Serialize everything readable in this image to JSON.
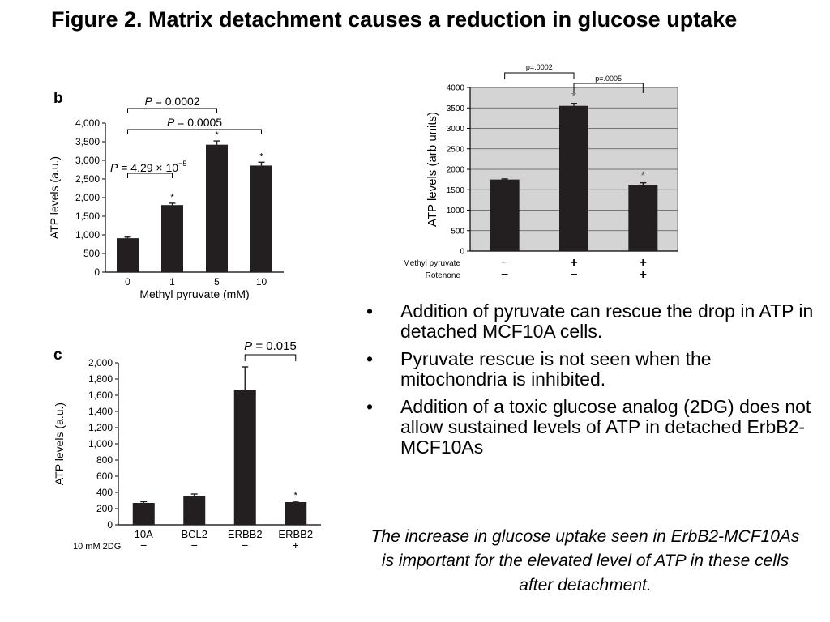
{
  "slide": {
    "title": "Figure 2. Matrix detachment causes a reduction in glucose uptake",
    "bullets": [
      "Addition of pyruvate can rescue the drop in ATP in detached MCF10A cells.",
      "Pyruvate rescue is not seen when the mitochondria is inhibited.",
      "Addition of a toxic glucose analog (2DG) does not allow sustained levels of ATP in detached ErbB2-MCF10As"
    ],
    "caption": "The increase in glucose uptake seen in ErbB2-MCF10As is important for the elevated level of ATP in these cells after detachment."
  },
  "chart_data": [
    {
      "id": "b",
      "type": "bar",
      "panel_label": "b",
      "categories": [
        "0",
        "1",
        "5",
        "10"
      ],
      "values": [
        910,
        1800,
        3420,
        2860
      ],
      "errors": [
        30,
        50,
        100,
        90
      ],
      "significance": [
        "",
        "*",
        "*",
        "*"
      ],
      "xlabel": "Methyl pyruvate (mM)",
      "ylabel": "ATP levels (a.u.)",
      "ylim": [
        0,
        4000
      ],
      "yticks": [
        0,
        500,
        1000,
        1500,
        2000,
        2500,
        3000,
        3500,
        4000
      ],
      "ytick_labels": [
        "0",
        "500",
        "1,000",
        "1,500",
        "2,000",
        "2,500",
        "3,000",
        "3,500",
        "4,000"
      ],
      "grid": false,
      "annotations": [
        {
          "text": "P = 0.0002",
          "from": 0,
          "to": 2
        },
        {
          "text": "P = 0.0005",
          "from": 0,
          "to": 3
        },
        {
          "text": "P = 4.29 × 10",
          "superscript": "−5",
          "from": 0,
          "to": 1
        }
      ]
    },
    {
      "id": "c",
      "type": "bar",
      "panel_label": "c",
      "categories": [
        "10A",
        "BCL2",
        "ERBB2",
        "ERBB2"
      ],
      "values": [
        270,
        360,
        1670,
        280
      ],
      "errors": [
        15,
        20,
        280,
        10
      ],
      "significance": [
        "",
        "",
        "",
        "*"
      ],
      "condition_label": "10 mM 2DG",
      "condition_values": [
        "−",
        "−",
        "−",
        "+"
      ],
      "ylabel": "ATP levels (a.u.)",
      "ylim": [
        0,
        2000
      ],
      "yticks": [
        0,
        200,
        400,
        600,
        800,
        1000,
        1200,
        1400,
        1600,
        1800,
        2000
      ],
      "ytick_labels": [
        "0",
        "200",
        "400",
        "600",
        "800",
        "1,000",
        "1,200",
        "1,400",
        "1,600",
        "1,800",
        "2,000"
      ],
      "grid": false,
      "annotations": [
        {
          "text": "P = 0.015",
          "from": 2,
          "to": 3
        }
      ]
    },
    {
      "id": "d",
      "type": "bar",
      "categories": [
        "",
        "",
        ""
      ],
      "values": [
        1750,
        3550,
        1620
      ],
      "errors": [
        15,
        60,
        50
      ],
      "significance": [
        "",
        "*",
        "*"
      ],
      "ylabel": "ATP levels (arb units)",
      "ylim": [
        0,
        4000
      ],
      "yticks": [
        0,
        500,
        1000,
        1500,
        2000,
        2500,
        3000,
        3500,
        4000
      ],
      "ytick_labels": [
        "0",
        "500",
        "1000",
        "1500",
        "2000",
        "2500",
        "3000",
        "3500",
        "4000"
      ],
      "grid": true,
      "plot_background": "#d4d4d4",
      "conditions": [
        {
          "label": "Methyl pyruvate",
          "values": [
            "−",
            "+",
            "+"
          ]
        },
        {
          "label": "Rotenone",
          "values": [
            "−",
            "−",
            "+"
          ]
        }
      ],
      "annotations": [
        {
          "text": "p=.0002",
          "from": 0,
          "to": 1
        },
        {
          "text": "p=.0005",
          "from": 1,
          "to": 2
        }
      ]
    }
  ]
}
